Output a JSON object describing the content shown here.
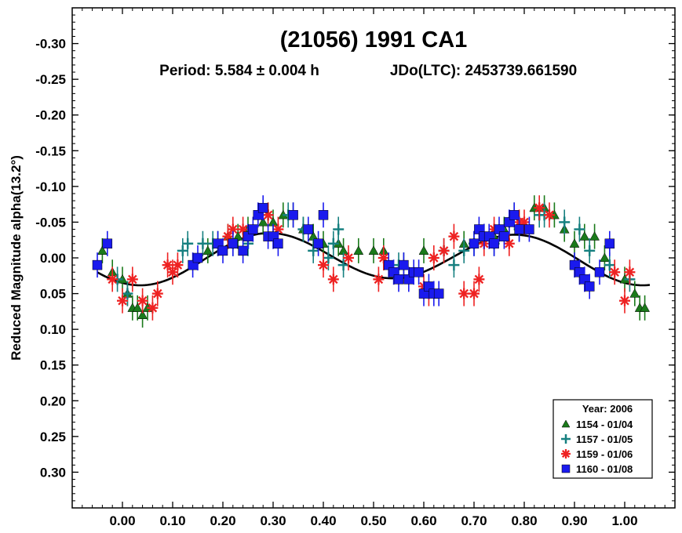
{
  "chart_data": {
    "type": "scatter",
    "title": "(21056) 1991 CA1",
    "subtitle_period": "Period: 5.584 ± 0.004 h",
    "subtitle_epoch": "JDo(LTC): 2453739.661590",
    "xlabel": "",
    "ylabel": "Reduced Magnitude alpha(13.2°)",
    "xlim": [
      -0.1,
      1.1
    ],
    "ylim": [
      -0.35,
      0.35
    ],
    "y_inverted": true,
    "x_ticks": [
      0.0,
      0.1,
      0.2,
      0.3,
      0.4,
      0.5,
      0.6,
      0.7,
      0.8,
      0.9,
      1.0
    ],
    "x_tick_labels": [
      "0.00",
      "0.10",
      "0.20",
      "0.30",
      "0.40",
      "0.50",
      "0.60",
      "0.70",
      "0.80",
      "0.90",
      "1.00"
    ],
    "y_ticks": [
      -0.3,
      -0.25,
      -0.2,
      -0.15,
      -0.1,
      -0.05,
      0.0,
      0.05,
      0.1,
      0.15,
      0.2,
      0.25,
      0.3
    ],
    "y_tick_labels": [
      "-0.30",
      "-0.25",
      "-0.20",
      "-0.15",
      "-0.10",
      "-0.05",
      "0.00",
      "0.05",
      "0.10",
      "0.15",
      "0.20",
      "0.25",
      "0.30"
    ],
    "legend_title": "Year: 2006",
    "legend_position": "bottom-right",
    "series": [
      {
        "name": "1154 - 01/04",
        "marker": "triangle",
        "color": "#1a7a1a",
        "points": [
          [
            -0.04,
            -0.01
          ],
          [
            -0.02,
            0.02
          ],
          [
            0.0,
            0.03
          ],
          [
            0.01,
            0.05
          ],
          [
            0.02,
            0.07
          ],
          [
            0.03,
            0.07
          ],
          [
            0.04,
            0.08
          ],
          [
            0.05,
            0.07
          ],
          [
            0.17,
            -0.01
          ],
          [
            0.19,
            -0.02
          ],
          [
            0.21,
            -0.03
          ],
          [
            0.23,
            -0.03
          ],
          [
            0.25,
            -0.04
          ],
          [
            0.28,
            -0.05
          ],
          [
            0.3,
            -0.05
          ],
          [
            0.32,
            -0.06
          ],
          [
            0.34,
            -0.06
          ],
          [
            0.36,
            -0.04
          ],
          [
            0.38,
            -0.03
          ],
          [
            0.4,
            -0.02
          ],
          [
            0.43,
            -0.02
          ],
          [
            0.44,
            -0.01
          ],
          [
            0.47,
            -0.01
          ],
          [
            0.5,
            -0.01
          ],
          [
            0.52,
            -0.01
          ],
          [
            0.56,
            0.01
          ],
          [
            0.6,
            -0.01
          ],
          [
            0.68,
            -0.02
          ],
          [
            0.72,
            -0.03
          ],
          [
            0.74,
            -0.03
          ],
          [
            0.76,
            -0.04
          ],
          [
            0.78,
            -0.06
          ],
          [
            0.82,
            -0.07
          ],
          [
            0.84,
            -0.07
          ],
          [
            0.86,
            -0.06
          ],
          [
            0.88,
            -0.04
          ],
          [
            0.9,
            -0.02
          ],
          [
            0.92,
            -0.03
          ],
          [
            0.94,
            -0.03
          ],
          [
            0.96,
            0.0
          ],
          [
            1.0,
            0.03
          ],
          [
            1.02,
            0.05
          ],
          [
            1.03,
            0.07
          ],
          [
            1.04,
            0.07
          ]
        ]
      },
      {
        "name": "1157 - 01/05",
        "marker": "plus",
        "color": "#178080",
        "points": [
          [
            -0.01,
            0.03
          ],
          [
            0.01,
            0.05
          ],
          [
            0.12,
            -0.01
          ],
          [
            0.13,
            -0.02
          ],
          [
            0.16,
            -0.02
          ],
          [
            0.18,
            -0.02
          ],
          [
            0.22,
            -0.02
          ],
          [
            0.25,
            -0.02
          ],
          [
            0.29,
            -0.06
          ],
          [
            0.33,
            -0.06
          ],
          [
            0.36,
            -0.04
          ],
          [
            0.38,
            -0.01
          ],
          [
            0.41,
            0.0
          ],
          [
            0.42,
            -0.02
          ],
          [
            0.43,
            -0.04
          ],
          [
            0.44,
            0.01
          ],
          [
            0.55,
            0.01
          ],
          [
            0.64,
            -0.01
          ],
          [
            0.66,
            0.01
          ],
          [
            0.68,
            -0.01
          ],
          [
            0.7,
            -0.02
          ],
          [
            0.74,
            -0.02
          ],
          [
            0.77,
            -0.05
          ],
          [
            0.79,
            -0.04
          ],
          [
            0.83,
            -0.06
          ],
          [
            0.84,
            -0.06
          ],
          [
            0.88,
            -0.05
          ],
          [
            0.91,
            -0.04
          ],
          [
            0.93,
            -0.01
          ],
          [
            0.97,
            0.01
          ],
          [
            1.01,
            0.03
          ]
        ]
      },
      {
        "name": "1159 - 01/06",
        "marker": "asterisk",
        "color": "#ee2222",
        "points": [
          [
            -0.02,
            0.03
          ],
          [
            0.0,
            0.06
          ],
          [
            0.02,
            0.03
          ],
          [
            0.04,
            0.06
          ],
          [
            0.06,
            0.07
          ],
          [
            0.07,
            0.05
          ],
          [
            0.09,
            0.01
          ],
          [
            0.1,
            0.02
          ],
          [
            0.11,
            0.01
          ],
          [
            0.21,
            -0.03
          ],
          [
            0.22,
            -0.04
          ],
          [
            0.24,
            -0.04
          ],
          [
            0.29,
            -0.06
          ],
          [
            0.31,
            -0.04
          ],
          [
            0.4,
            0.01
          ],
          [
            0.42,
            0.03
          ],
          [
            0.45,
            0.0
          ],
          [
            0.51,
            0.03
          ],
          [
            0.52,
            0.0
          ],
          [
            0.6,
            0.04
          ],
          [
            0.61,
            0.05
          ],
          [
            0.62,
            0.0
          ],
          [
            0.64,
            -0.01
          ],
          [
            0.66,
            -0.03
          ],
          [
            0.68,
            0.05
          ],
          [
            0.7,
            0.05
          ],
          [
            0.71,
            0.03
          ],
          [
            0.72,
            -0.02
          ],
          [
            0.74,
            -0.04
          ],
          [
            0.77,
            -0.02
          ],
          [
            0.79,
            -0.05
          ],
          [
            0.8,
            -0.05
          ],
          [
            0.83,
            -0.07
          ],
          [
            0.85,
            -0.06
          ],
          [
            0.98,
            0.02
          ],
          [
            1.0,
            0.06
          ],
          [
            1.01,
            0.02
          ]
        ]
      },
      {
        "name": "1160 - 01/08",
        "marker": "square",
        "color": "#1a1aee",
        "points": [
          [
            -0.05,
            0.01
          ],
          [
            -0.03,
            -0.02
          ],
          [
            0.14,
            0.01
          ],
          [
            0.15,
            0.0
          ],
          [
            0.19,
            -0.02
          ],
          [
            0.2,
            -0.01
          ],
          [
            0.22,
            -0.02
          ],
          [
            0.24,
            -0.01
          ],
          [
            0.25,
            -0.03
          ],
          [
            0.26,
            -0.04
          ],
          [
            0.27,
            -0.06
          ],
          [
            0.28,
            -0.07
          ],
          [
            0.29,
            -0.03
          ],
          [
            0.3,
            -0.03
          ],
          [
            0.31,
            -0.02
          ],
          [
            0.34,
            -0.06
          ],
          [
            0.37,
            -0.04
          ],
          [
            0.39,
            -0.02
          ],
          [
            0.4,
            -0.06
          ],
          [
            0.53,
            0.01
          ],
          [
            0.54,
            0.02
          ],
          [
            0.55,
            0.03
          ],
          [
            0.56,
            0.01
          ],
          [
            0.57,
            0.03
          ],
          [
            0.58,
            0.02
          ],
          [
            0.59,
            0.02
          ],
          [
            0.6,
            0.05
          ],
          [
            0.61,
            0.04
          ],
          [
            0.62,
            0.05
          ],
          [
            0.63,
            0.05
          ],
          [
            0.7,
            -0.02
          ],
          [
            0.71,
            -0.04
          ],
          [
            0.72,
            -0.03
          ],
          [
            0.73,
            -0.03
          ],
          [
            0.74,
            -0.02
          ],
          [
            0.75,
            -0.04
          ],
          [
            0.76,
            -0.03
          ],
          [
            0.77,
            -0.05
          ],
          [
            0.78,
            -0.06
          ],
          [
            0.79,
            -0.04
          ],
          [
            0.81,
            -0.04
          ],
          [
            0.9,
            0.01
          ],
          [
            0.91,
            0.02
          ],
          [
            0.92,
            0.03
          ],
          [
            0.93,
            0.04
          ],
          [
            0.95,
            0.02
          ],
          [
            0.97,
            -0.02
          ]
        ]
      }
    ],
    "fit_curve": {
      "type": "fourier",
      "mean": 0.0,
      "terms": [
        {
          "harmonic": 1,
          "cos": 0.005,
          "sin": 0.0
        },
        {
          "harmonic": 2,
          "cos": 0.03,
          "sin": 0.015
        }
      ],
      "color": "#000000"
    }
  }
}
